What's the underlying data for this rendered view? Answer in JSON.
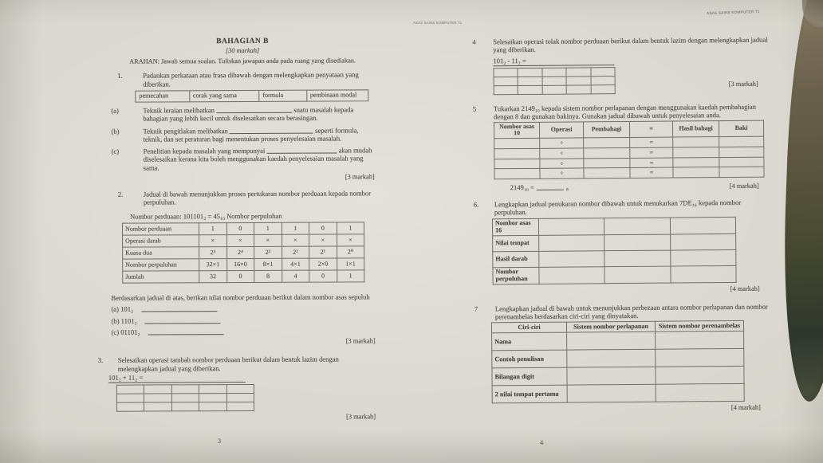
{
  "meta": {
    "corner_label": "ASAS SAINS KOMPUTER T1",
    "page_left": "3",
    "page_right": "4"
  },
  "left": {
    "title": "BAHAGIAN B",
    "subtitle": "[30 markah]",
    "instruction": "ARAHAN: Jawab semua soalan. Tuliskan jawapan anda pada ruang yang disediakan.",
    "q1": {
      "num": "1.",
      "text": "Padankan perkataan atau frasa dibawah dengan melengkapkan penyataan yang diberikan.",
      "options": [
        "pemecahan",
        "corak yang sama",
        "formula",
        "pembinaan modal"
      ],
      "parts": [
        {
          "label": "(a)",
          "before": "Teknik leraian melibatkan",
          "after": "suatu masalah kepada bahagian yang lebih kecil untuk diselesaikan secara berasingan."
        },
        {
          "label": "(b)",
          "before": "Teknik pengitlakan melibatkan",
          "after": "seperti formula, teknik, dan set peraturan bagi menentukan proses penyelesaian masalah."
        },
        {
          "label": "(c)",
          "before": "Penelitian kepada masalah yang mempunyai",
          "after": "akan mudah diselesaikan kerana kita boleh menggunakan kaedah penyelesaian masalah yang sama."
        }
      ],
      "marks": "[3 markah]"
    },
    "q2": {
      "num": "2.",
      "text": "Jadual di bawah menunjukkan proses pertukaran nombor perduaan kepada nombor perpuluhan.",
      "equation": "Nombor perduaan: 101101₂ = 45₁₀  Nombor perpuluhan",
      "table": [
        [
          "Nombor perduaan",
          "1",
          "0",
          "1",
          "1",
          "0",
          "1"
        ],
        [
          "Operasi darab",
          "×",
          "×",
          "×",
          "×",
          "×",
          "×"
        ],
        [
          "Kuasa dua",
          "2⁵",
          "2⁴",
          "2³",
          "2²",
          "2¹",
          "2⁰"
        ],
        [
          "Nombor perpuluhan",
          "32×1",
          "16×0",
          "8×1",
          "4×1",
          "2×0",
          "1×1"
        ],
        [
          "Jumlah",
          "32",
          "0",
          "8",
          "4",
          "0",
          "1"
        ]
      ],
      "followup": "Berdasarkan jadual di atas, berikan nilai nombor perduaan berikut dalam nombor asas sepuluh",
      "items": [
        "(a) 101₂",
        "(b) 1101₂",
        "(c) 01101₂"
      ],
      "marks": "[3 markah]"
    },
    "q3": {
      "num": "3.",
      "text": "Selesaikan operasi tambah nombor perduaan berikut dalam bentuk lazim dengan melengkapkan jadual yang diberikan.",
      "equation": "101₂ + 11₂ =",
      "grid": [
        [
          "",
          "",
          "",
          "",
          ""
        ],
        [
          "",
          "",
          "",
          "",
          ""
        ],
        [
          "",
          "",
          "",
          "",
          ""
        ]
      ],
      "marks": "[3 markah]"
    }
  },
  "right": {
    "q4": {
      "num": "4",
      "text": "Selesaikan operasi tolak nombor perduaan berikut dalam bentuk lazim dengan melengkapkan jadual yang diberikan.",
      "equation": "101₂ - 11₂ =",
      "grid": [
        [
          "",
          "",
          "",
          "",
          ""
        ],
        [
          "",
          "",
          "",
          "",
          ""
        ],
        [
          "",
          "",
          "",
          "",
          ""
        ]
      ],
      "marks": "[3 markah]"
    },
    "q5": {
      "num": "5",
      "text": "Tukarkan 2149₁₀ kepada sistem nombor perlapanan dengan menggunakan kaedah pembahagian dengan 8 dan gunakan bakinya. Gunakan jadual dibawah untuk penyelesaian anda.",
      "header": [
        "Nombor asas 10",
        "Operasi",
        "Pembahagi",
        "=",
        "Hasil bahagi",
        "Baki"
      ],
      "rows": [
        [
          "",
          "÷",
          "",
          "=",
          "",
          ""
        ],
        [
          "",
          "÷",
          "",
          "=",
          "",
          ""
        ],
        [
          "",
          "÷",
          "",
          "=",
          "",
          ""
        ],
        [
          "",
          "÷",
          "",
          "=",
          "",
          ""
        ]
      ],
      "result_prefix": "2149₁₀ =",
      "result_suffix": "₈",
      "marks": "[4 markah]"
    },
    "q6": {
      "num": "6.",
      "text": "Lengkapkan jadual penukaran nombor dibawah untuk menukarkan 7DE₁₆ kepada nombor perpuluhan.",
      "table": [
        [
          "Nombor asas 16",
          "",
          "",
          ""
        ],
        [
          "Nilai tempat",
          "",
          "",
          ""
        ],
        [
          "Hasil darab",
          "",
          "",
          ""
        ],
        [
          "Nombor perpuluhan",
          "",
          "",
          ""
        ]
      ],
      "marks": "[4 markah]"
    },
    "q7": {
      "num": "7",
      "text": "Lengkapkan jadual di bawah untuk menunjukkan perbezaan antara nombor perlapanan dan nombor perenambelas berdasarkan ciri-ciri yang dinyatakan.",
      "header": [
        "Ciri-ciri",
        "Sistem nombor perlapanan",
        "Sistem nombor perenambelas"
      ],
      "rows": [
        [
          "Nama",
          "",
          ""
        ],
        [
          "Contoh penulisan",
          "",
          ""
        ],
        [
          "Bilangan digit",
          "",
          ""
        ],
        [
          "2 nilai tempat pertama",
          "",
          ""
        ]
      ],
      "marks": "[4 markah]"
    }
  }
}
